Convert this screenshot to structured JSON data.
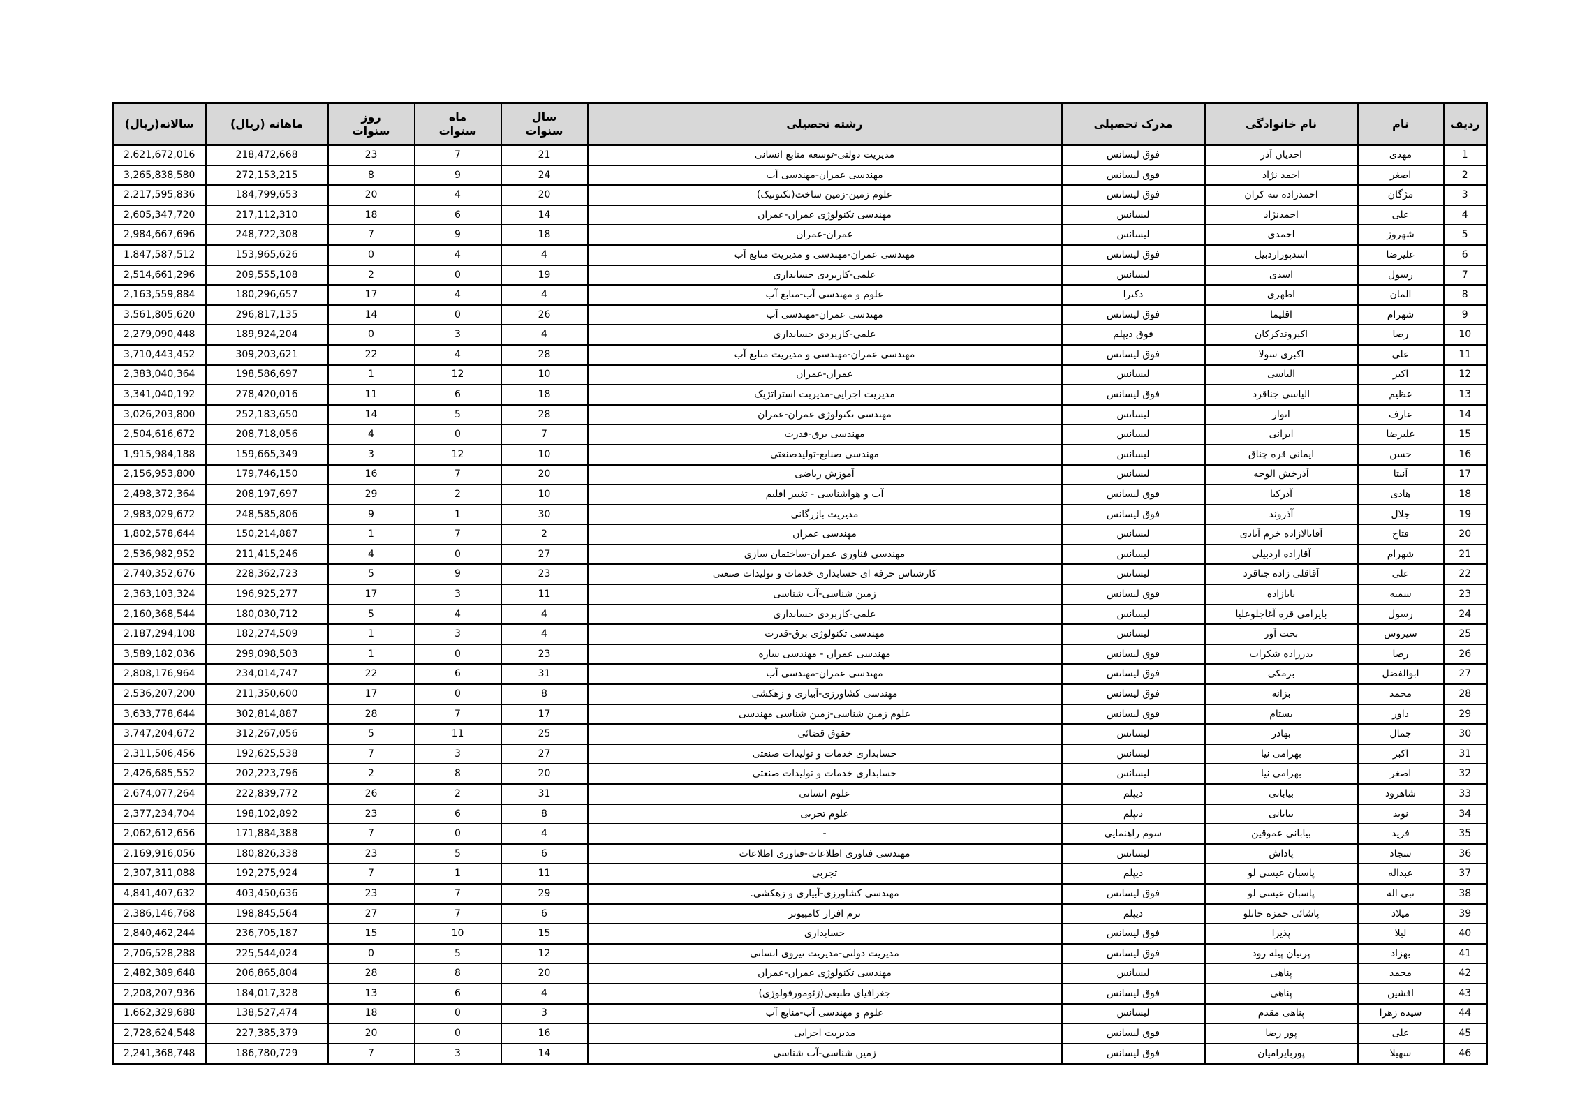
{
  "colors": {
    "header_bg": "#d8d8d8",
    "border": "#000000",
    "page_bg": "#ffffff"
  },
  "table": {
    "columns": [
      {
        "key": "row_no",
        "label": "ردیف"
      },
      {
        "key": "first_name",
        "label": "نام"
      },
      {
        "key": "last_name",
        "label": "نام خانوادگی"
      },
      {
        "key": "degree",
        "label": "مدرک تحصیلی"
      },
      {
        "key": "field",
        "label": "رشته تحصیلی"
      },
      {
        "key": "years",
        "label": "سال\nسنوات"
      },
      {
        "key": "months",
        "label": "ماه\nسنوات"
      },
      {
        "key": "days",
        "label": "روز\nسنوات"
      },
      {
        "key": "monthly",
        "label": "ماهانه (ریال)"
      },
      {
        "key": "annual",
        "label": "سالانه(ریال)"
      }
    ],
    "rows": [
      [
        "1",
        "مهدی",
        "احدیان آذر",
        "فوق لیسانس",
        "مدیریت دولتی-توسعه منابع انسانی",
        "21",
        "7",
        "23",
        "218,472,668",
        "2,621,672,016"
      ],
      [
        "2",
        "اصغر",
        "احمد نژاد",
        "فوق لیسانس",
        "مهندسی عمران-مهندسی آب",
        "24",
        "9",
        "8",
        "272,153,215",
        "3,265,838,580"
      ],
      [
        "3",
        "مژگان",
        "احمدزاده ننه کران",
        "فوق لیسانس",
        "علوم زمین-زمین ساخت(تکتونیک)",
        "20",
        "4",
        "20",
        "184,799,653",
        "2,217,595,836"
      ],
      [
        "4",
        "علی",
        "احمدنژاد",
        "لیسانس",
        "مهندسی تکنولوژی عمران-عمران",
        "14",
        "6",
        "18",
        "217,112,310",
        "2,605,347,720"
      ],
      [
        "5",
        "شهروز",
        "احمدی",
        "لیسانس",
        "عمران-عمران",
        "18",
        "9",
        "7",
        "248,722,308",
        "2,984,667,696"
      ],
      [
        "6",
        "علیرضا",
        "اسدپوراردبیل",
        "فوق لیسانس",
        "مهندسی عمران-مهندسی و مدیریت منابع آب",
        "4",
        "4",
        "0",
        "153,965,626",
        "1,847,587,512"
      ],
      [
        "7",
        "رسول",
        "اسدی",
        "لیسانس",
        "علمی-کاربردی حسابداری",
        "19",
        "0",
        "2",
        "209,555,108",
        "2,514,661,296"
      ],
      [
        "8",
        "المان",
        "اطهری",
        "دکترا",
        "علوم و مهندسی آب-منابع آب",
        "4",
        "4",
        "17",
        "180,296,657",
        "2,163,559,884"
      ],
      [
        "9",
        "شهرام",
        "اقلیما",
        "فوق لیسانس",
        "مهندسی عمران-مهندسی آب",
        "26",
        "0",
        "14",
        "296,817,135",
        "3,561,805,620"
      ],
      [
        "10",
        "رضا",
        "اکبروندکرکان",
        "فوق دیپلم",
        "علمی-کاربردی حسابداری",
        "4",
        "3",
        "0",
        "189,924,204",
        "2,279,090,448"
      ],
      [
        "11",
        "علی",
        "اکبری سولا",
        "فوق لیسانس",
        "مهندسی عمران-مهندسی و مدیریت منابع آب",
        "28",
        "4",
        "22",
        "309,203,621",
        "3,710,443,452"
      ],
      [
        "12",
        "اکبر",
        "الیاسی",
        "لیسانس",
        "عمران-عمران",
        "10",
        "12",
        "1",
        "198,586,697",
        "2,383,040,364"
      ],
      [
        "13",
        "عظیم",
        "الیاسی جناقرد",
        "فوق لیسانس",
        "مدیریت اجرایی-مدیریت استراتژیک",
        "18",
        "6",
        "11",
        "278,420,016",
        "3,341,040,192"
      ],
      [
        "14",
        "عارف",
        "انوار",
        "لیسانس",
        "مهندسی تکنولوژی عمران-عمران",
        "28",
        "5",
        "14",
        "252,183,650",
        "3,026,203,800"
      ],
      [
        "15",
        "علیرضا",
        "ایرانی",
        "لیسانس",
        "مهندسی برق-قدرت",
        "7",
        "0",
        "4",
        "208,718,056",
        "2,504,616,672"
      ],
      [
        "16",
        "حسن",
        "ایمانی قره چناق",
        "لیسانس",
        "مهندسی صنایع-تولیدصنعتی",
        "10",
        "12",
        "3",
        "159,665,349",
        "1,915,984,188"
      ],
      [
        "17",
        "آنیتا",
        "آذرخش الوجه",
        "لیسانس",
        "آموزش ریاضی",
        "20",
        "7",
        "16",
        "179,746,150",
        "2,156,953,800"
      ],
      [
        "18",
        "هادی",
        "آذرکیا",
        "فوق لیسانس",
        "آب و هواشناسی - تغییر اقلیم",
        "10",
        "2",
        "29",
        "208,197,697",
        "2,498,372,364"
      ],
      [
        "19",
        "جلال",
        "آذروند",
        "فوق لیسانس",
        "مدیریت بازرگانی",
        "30",
        "1",
        "9",
        "248,585,806",
        "2,983,029,672"
      ],
      [
        "20",
        "فتاح",
        "آقابالازاده خرم آبادی",
        "لیسانس",
        "مهندسی عمران",
        "2",
        "7",
        "1",
        "150,214,887",
        "1,802,578,644"
      ],
      [
        "21",
        "شهرام",
        "آقازاده اردبیلی",
        "لیسانس",
        "مهندسی فناوری عمران-ساختمان سازی",
        "27",
        "0",
        "4",
        "211,415,246",
        "2,536,982,952"
      ],
      [
        "22",
        "علی",
        "آقاقلی زاده جناقرد",
        "لیسانس",
        "کارشناس حرفه ای حسابداری خدمات و تولیدات صنعتی",
        "23",
        "9",
        "5",
        "228,362,723",
        "2,740,352,676"
      ],
      [
        "23",
        "سمیه",
        "بابازاده",
        "فوق لیسانس",
        "زمین شناسی-آب شناسی",
        "11",
        "3",
        "17",
        "196,925,277",
        "2,363,103,324"
      ],
      [
        "24",
        "رسول",
        "بایرامی قره آغاجلوعلیا",
        "لیسانس",
        "علمی-کاربردی حسابداری",
        "4",
        "4",
        "5",
        "180,030,712",
        "2,160,368,544"
      ],
      [
        "25",
        "سیروس",
        "بخت آور",
        "لیسانس",
        "مهندسی تکنولوژی برق-قدرت",
        "4",
        "3",
        "1",
        "182,274,509",
        "2,187,294,108"
      ],
      [
        "26",
        "رضا",
        "بدرزاده شکراب",
        "فوق لیسانس",
        "مهندسی عمران - مهندسی سازه",
        "23",
        "0",
        "1",
        "299,098,503",
        "3,589,182,036"
      ],
      [
        "27",
        "ابوالفضل",
        "برمکی",
        "فوق لیسانس",
        "مهندسی عمران-مهندسی آب",
        "31",
        "6",
        "22",
        "234,014,747",
        "2,808,176,964"
      ],
      [
        "28",
        "محمد",
        "بزانه",
        "فوق لیسانس",
        "مهندسی کشاورزی-آبیاری و زهکشی",
        "8",
        "0",
        "17",
        "211,350,600",
        "2,536,207,200"
      ],
      [
        "29",
        "داور",
        "بستام",
        "فوق لیسانس",
        "علوم زمین شناسی-زمین شناسی مهندسی",
        "17",
        "7",
        "28",
        "302,814,887",
        "3,633,778,644"
      ],
      [
        "30",
        "جمال",
        "بهادر",
        "لیسانس",
        "حقوق قضائی",
        "25",
        "11",
        "5",
        "312,267,056",
        "3,747,204,672"
      ],
      [
        "31",
        "اکبر",
        "بهرامی نیا",
        "لیسانس",
        "حسابداری خدمات و تولیدات صنعتی",
        "27",
        "3",
        "7",
        "192,625,538",
        "2,311,506,456"
      ],
      [
        "32",
        "اصغر",
        "بهرامی نیا",
        "لیسانس",
        "حسابداری خدمات و تولیدات صنعتی",
        "20",
        "8",
        "2",
        "202,223,796",
        "2,426,685,552"
      ],
      [
        "33",
        "شاهرود",
        "بیابانی",
        "دیپلم",
        "علوم انسانی",
        "31",
        "2",
        "26",
        "222,839,772",
        "2,674,077,264"
      ],
      [
        "34",
        "نوید",
        "بیابانی",
        "دیپلم",
        "علوم تجربی",
        "8",
        "6",
        "23",
        "198,102,892",
        "2,377,234,704"
      ],
      [
        "35",
        "فرید",
        "بیابانی عموقین",
        "سوم راهنمایی",
        "-",
        "4",
        "0",
        "7",
        "171,884,388",
        "2,062,612,656"
      ],
      [
        "36",
        "سجاد",
        "پاداش",
        "لیسانس",
        "مهندسی فناوری اطلاعات-فناوری اطلاعات",
        "6",
        "5",
        "23",
        "180,826,338",
        "2,169,916,056"
      ],
      [
        "37",
        "عبداله",
        "پاسبان عیسی لو",
        "دیپلم",
        "تجربی",
        "11",
        "1",
        "7",
        "192,275,924",
        "2,307,311,088"
      ],
      [
        "38",
        "نبی اله",
        "پاسبان عیسی لو",
        "فوق لیسانس",
        "مهندسی کشاورزی-آبیاری و زهکشی.",
        "29",
        "7",
        "23",
        "403,450,636",
        "4,841,407,632"
      ],
      [
        "39",
        "میلاد",
        "پاشائی حمزه خانلو",
        "دیپلم",
        "نرم افزار کامپیوتر",
        "6",
        "7",
        "27",
        "198,845,564",
        "2,386,146,768"
      ],
      [
        "40",
        "لیلا",
        "پذیرا",
        "فوق لیسانس",
        "حسابداری",
        "15",
        "10",
        "15",
        "236,705,187",
        "2,840,462,244"
      ],
      [
        "41",
        "بهزاد",
        "پرنیان پیله رود",
        "فوق لیسانس",
        "مدیریت دولتی-مدیریت نیروی انسانی",
        "12",
        "5",
        "0",
        "225,544,024",
        "2,706,528,288"
      ],
      [
        "42",
        "محمد",
        "پناهی",
        "لیسانس",
        "مهندسی تکنولوژی عمران-عمران",
        "20",
        "8",
        "28",
        "206,865,804",
        "2,482,389,648"
      ],
      [
        "43",
        "افشین",
        "پناهی",
        "فوق لیسانس",
        "جغرافیای طبیعی(ژئومورفولوژی)",
        "4",
        "6",
        "13",
        "184,017,328",
        "2,208,207,936"
      ],
      [
        "44",
        "سیده زهرا",
        "پناهی مقدم",
        "لیسانس",
        "علوم و مهندسی آب-منابع آب",
        "3",
        "0",
        "18",
        "138,527,474",
        "1,662,329,688"
      ],
      [
        "45",
        "علی",
        "پور رضا",
        "فوق لیسانس",
        "مدیریت اجرایی",
        "16",
        "0",
        "20",
        "227,385,379",
        "2,728,624,548"
      ],
      [
        "46",
        "سهیلا",
        "پوربایرامیان",
        "فوق لیسانس",
        "زمین شناسی-آب شناسی",
        "14",
        "3",
        "7",
        "186,780,729",
        "2,241,368,748"
      ]
    ]
  }
}
